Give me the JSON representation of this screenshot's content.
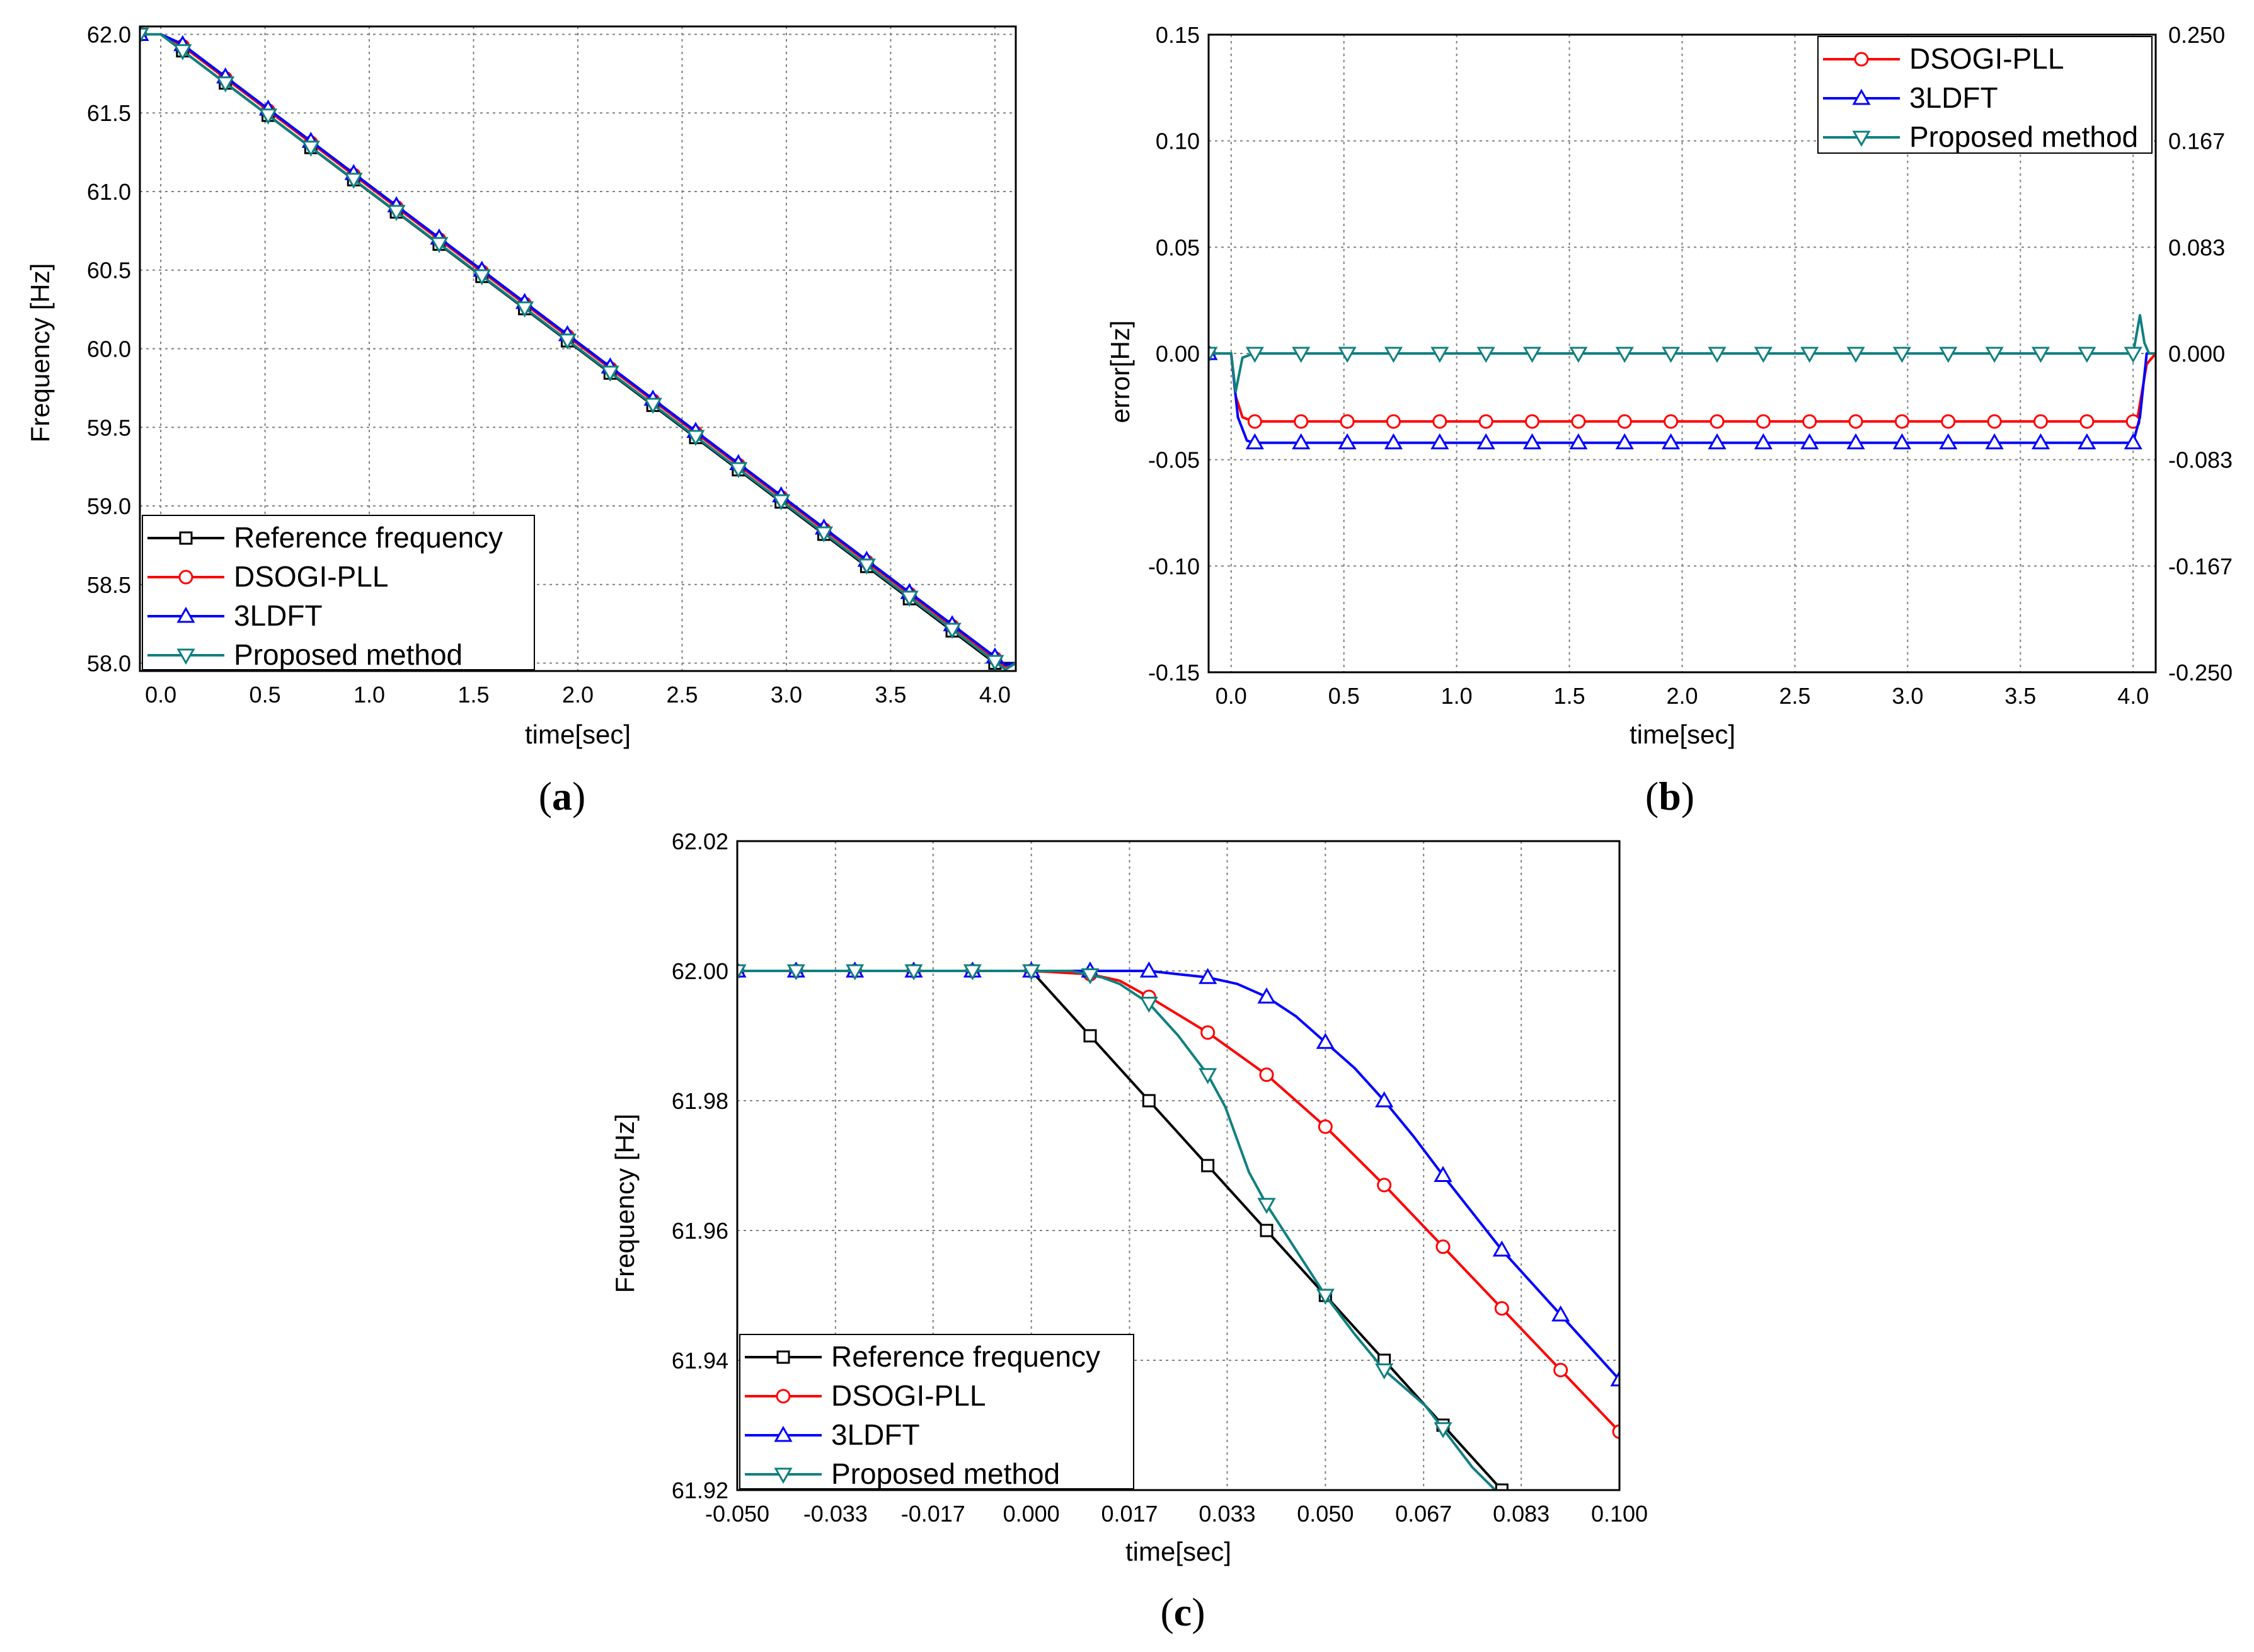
{
  "colors": {
    "Reference frequency": "#000000",
    "DSOGI-PLL": "#ff0000",
    "3LDFT": "#0000ff",
    "Proposed method": "#108080"
  },
  "markers": {
    "Reference frequency": "square",
    "DSOGI-PLL": "circle",
    "3LDFT": "triangle-up",
    "Proposed method": "triangle-down"
  },
  "chart_data": [
    {
      "id": "a",
      "type": "line",
      "panel_label": "a",
      "xlabel": "time[sec]",
      "ylabel": "Frequency [Hz]",
      "xlim": [
        -0.1,
        4.1
      ],
      "ylim": [
        57.95,
        62.05
      ],
      "xticks": [
        "0.0",
        "0.5",
        "1.0",
        "1.5",
        "2.0",
        "2.5",
        "3.0",
        "3.5",
        "4.0"
      ],
      "xtick_values": [
        0.0,
        0.5,
        1.0,
        1.5,
        2.0,
        2.5,
        3.0,
        3.5,
        4.0
      ],
      "yticks": [
        "62.0",
        "61.5",
        "61.0",
        "60.5",
        "60.0",
        "59.5",
        "59.0",
        "58.5",
        "58.0"
      ],
      "ytick_values": [
        62.0,
        61.5,
        61.0,
        60.5,
        60.0,
        59.5,
        59.0,
        58.5,
        58.0
      ],
      "legend_position": "bottom-left",
      "legend": [
        "Reference frequency",
        "DSOGI-PLL",
        "3LDFT",
        "Proposed method"
      ],
      "series": [
        {
          "name": "Reference frequency",
          "x": [
            -0.1,
            0.0,
            4.0,
            4.1
          ],
          "y": [
            62.0,
            62.0,
            58.0,
            58.0
          ]
        },
        {
          "name": "DSOGI-PLL",
          "x": [
            -0.1,
            0.0,
            0.1,
            4.05,
            4.1
          ],
          "y": [
            62.0,
            62.0,
            61.93,
            57.98,
            58.0
          ]
        },
        {
          "name": "3LDFT",
          "x": [
            -0.1,
            0.0,
            0.1,
            4.05,
            4.1
          ],
          "y": [
            62.0,
            62.0,
            61.94,
            57.99,
            58.0
          ]
        },
        {
          "name": "Proposed method",
          "x": [
            -0.1,
            0.0,
            0.1,
            4.05,
            4.1
          ],
          "y": [
            62.0,
            62.0,
            61.9,
            57.96,
            58.0
          ]
        }
      ]
    },
    {
      "id": "b",
      "type": "line",
      "panel_label": "b",
      "xlabel": "time[sec]",
      "ylabel": "error[Hz]",
      "xlim": [
        -0.1,
        4.1
      ],
      "ylim": [
        -0.15,
        0.15
      ],
      "xticks": [
        "0.0",
        "0.5",
        "1.0",
        "1.5",
        "2.0",
        "2.5",
        "3.0",
        "3.5",
        "4.0"
      ],
      "xtick_values": [
        0.0,
        0.5,
        1.0,
        1.5,
        2.0,
        2.5,
        3.0,
        3.5,
        4.0
      ],
      "yticks": [
        "0.15",
        "0.10",
        "0.05",
        "0.00",
        "-0.05",
        "-0.10",
        "-0.15"
      ],
      "ytick_values": [
        0.15,
        0.1,
        0.05,
        0.0,
        -0.05,
        -0.1,
        -0.15
      ],
      "y2ticks": [
        "0.250",
        "0.167",
        "0.083",
        "0.000",
        "-0.083",
        "-0.167",
        "-0.250"
      ],
      "legend_position": "top-right",
      "legend": [
        "DSOGI-PLL",
        "3LDFT",
        "Proposed method"
      ],
      "series": [
        {
          "name": "DSOGI-PLL",
          "x": [
            -0.1,
            0.0,
            0.02,
            0.05,
            0.1,
            4.0,
            4.02,
            4.06,
            4.1
          ],
          "y": [
            0.0,
            0.0,
            -0.02,
            -0.03,
            -0.032,
            -0.032,
            -0.03,
            -0.005,
            0.0
          ]
        },
        {
          "name": "3LDFT",
          "x": [
            -0.1,
            0.0,
            0.03,
            0.07,
            0.1,
            4.0,
            4.03,
            4.06,
            4.1
          ],
          "y": [
            0.0,
            0.0,
            -0.03,
            -0.041,
            -0.042,
            -0.042,
            -0.03,
            0.0,
            0.0
          ]
        },
        {
          "name": "Proposed method",
          "x": [
            -0.1,
            0.0,
            0.02,
            0.05,
            0.1,
            4.0,
            4.03,
            4.05,
            4.07,
            4.1
          ],
          "y": [
            0.0,
            0.0,
            -0.018,
            -0.002,
            0.0,
            0.0,
            0.018,
            0.005,
            0.0,
            0.0
          ]
        }
      ]
    },
    {
      "id": "c",
      "type": "line",
      "panel_label": "c",
      "xlabel": "time[sec]",
      "ylabel": "Frequency [Hz]",
      "xlim": [
        -0.05,
        0.1
      ],
      "ylim": [
        61.92,
        62.02
      ],
      "xticks": [
        "-0.050",
        "-0.033",
        "-0.017",
        "0.000",
        "0.017",
        "0.033",
        "0.050",
        "0.067",
        "0.083",
        "0.100"
      ],
      "xtick_values": [
        -0.05,
        -0.0333,
        -0.0167,
        0.0,
        0.0167,
        0.0333,
        0.05,
        0.0667,
        0.0833,
        0.1
      ],
      "yticks": [
        "62.02",
        "62.00",
        "61.98",
        "61.96",
        "61.94",
        "61.92"
      ],
      "ytick_values": [
        62.02,
        62.0,
        61.98,
        61.96,
        61.94,
        61.92
      ],
      "legend_position": "bottom-left",
      "legend": [
        "Reference frequency",
        "DSOGI-PLL",
        "3LDFT",
        "Proposed method"
      ],
      "series": [
        {
          "name": "Reference frequency",
          "x": [
            -0.05,
            0.0,
            0.08
          ],
          "y": [
            62.0,
            62.0,
            61.92
          ]
        },
        {
          "name": "DSOGI-PLL",
          "x": [
            -0.05,
            0.0,
            0.01,
            0.015,
            0.02,
            0.03,
            0.04,
            0.05,
            0.06,
            0.07,
            0.08,
            0.09,
            0.1
          ],
          "y": [
            62.0,
            62.0,
            61.9995,
            61.9985,
            61.996,
            61.9905,
            61.984,
            61.976,
            61.967,
            61.9575,
            61.948,
            61.9385,
            61.929
          ]
        },
        {
          "name": "3LDFT",
          "x": [
            -0.05,
            0.0,
            0.01,
            0.02,
            0.025,
            0.03,
            0.035,
            0.04,
            0.045,
            0.05,
            0.055,
            0.06,
            0.065,
            0.07,
            0.08,
            0.09,
            0.1
          ],
          "y": [
            62.0,
            62.0,
            62.0,
            62.0,
            61.9995,
            61.999,
            61.998,
            61.996,
            61.993,
            61.989,
            61.985,
            61.98,
            61.9745,
            61.9685,
            61.957,
            61.947,
            61.937
          ]
        },
        {
          "name": "Proposed method",
          "x": [
            -0.05,
            0.0,
            0.0067,
            0.012,
            0.015,
            0.02,
            0.025,
            0.03,
            0.033,
            0.037,
            0.04,
            0.045,
            0.05,
            0.055,
            0.06,
            0.067,
            0.075,
            0.08
          ],
          "y": [
            62.0,
            62.0,
            62.0,
            61.999,
            61.998,
            61.995,
            61.99,
            61.984,
            61.979,
            61.969,
            61.964,
            61.957,
            61.95,
            61.944,
            61.9385,
            61.933,
            61.9235,
            61.919
          ]
        }
      ]
    }
  ]
}
